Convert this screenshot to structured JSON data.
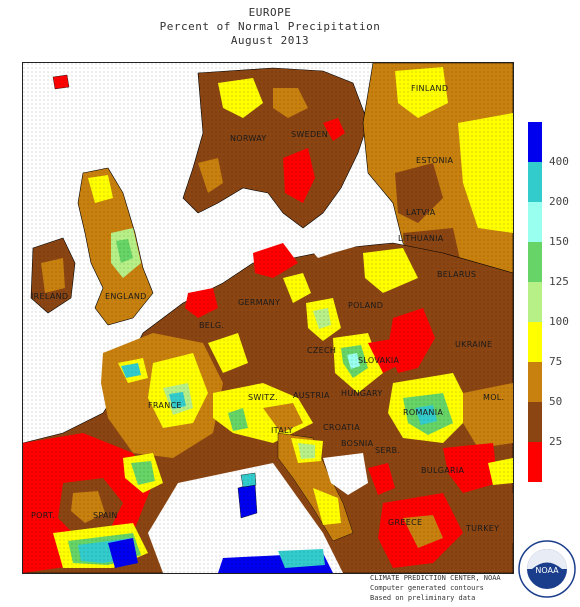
{
  "header": {
    "region": "EUROPE",
    "subtitle": "Percent of Normal Precipitation",
    "period": "August 2013"
  },
  "legend": {
    "ticks": [
      "25",
      "50",
      "75",
      "100",
      "125",
      "150",
      "200",
      "400"
    ],
    "colors": [
      "#ff0000",
      "#8b4513",
      "#c8800f",
      "#ffff00",
      "#b8f088",
      "#66d466",
      "#99ffee",
      "#33cccc",
      "#0000ee"
    ]
  },
  "map_labels": {
    "finland": "FINLAND",
    "sweden": "SWEDEN",
    "norway": "NORWAY",
    "estonia": "ESTONIA",
    "latvia": "LATVIA",
    "lithuania": "LITHUANIA",
    "belarus": "BELARUS",
    "poland": "POLAND",
    "ukraine": "UKRAINE",
    "germany": "GERMANY",
    "england": "ENGLAND",
    "ireland": "IRELAND",
    "belgium": "BELG.",
    "czech": "CZECH",
    "slovakia": "SLOVAKIA",
    "austria": "AUSTRIA",
    "hungary": "HUNGARY",
    "switzerland": "SWITZ.",
    "france": "FRANCE",
    "italy": "ITALY",
    "croatia": "CROATIA",
    "bosnia": "BOSNIA",
    "serbia": "SERB.",
    "romania": "ROMANIA",
    "moldova": "MOL.",
    "bulgaria": "BULGARIA",
    "greece": "GREECE",
    "turkey": "TURKEY",
    "spain": "SPAIN",
    "portugal": "PORT."
  },
  "credits": {
    "line1": "CLIMATE PREDICTION CENTER, NOAA",
    "line2": "Computer generated contours",
    "line3": "Based on preliminary data"
  },
  "logo": {
    "text": "NOAA"
  }
}
